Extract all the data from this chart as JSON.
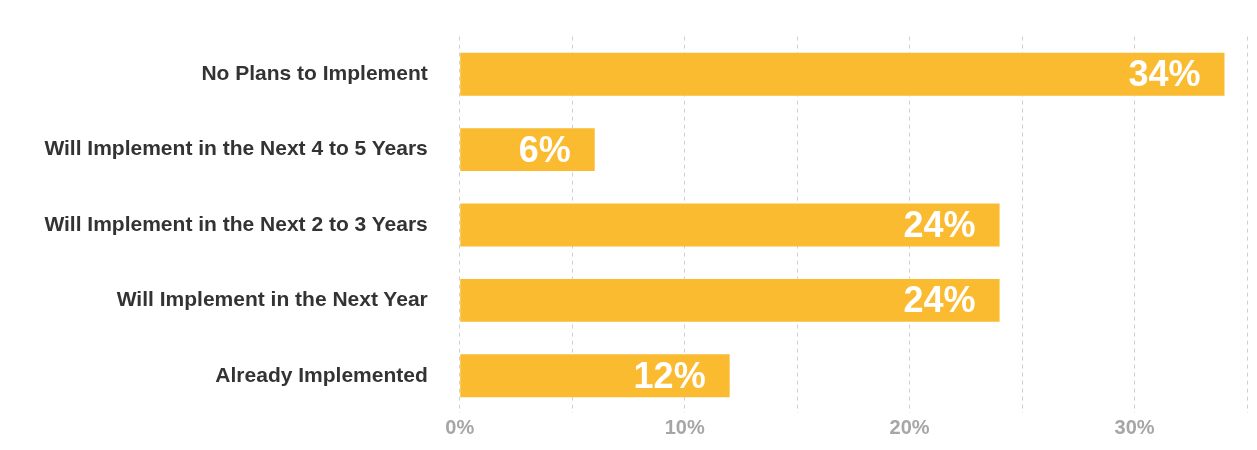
{
  "chart_data": {
    "type": "bar",
    "orientation": "horizontal",
    "categories": [
      "No Plans to Implement",
      "Will Implement in the Next 4 to 5 Years",
      "Will Implement in the Next 2 to 3 Years",
      "Will Implement in the Next Year",
      "Already Implemented"
    ],
    "values": [
      34,
      6,
      24,
      24,
      12
    ],
    "value_labels": [
      "34%",
      "6%",
      "24%",
      "24%",
      "12%"
    ],
    "color": "#fbbb30",
    "xlim": [
      0,
      35
    ],
    "xticks": [
      {
        "value": 0,
        "label": "0%"
      },
      {
        "value": 5,
        "label": null
      },
      {
        "value": 10,
        "label": "10%"
      },
      {
        "value": 15,
        "label": null
      },
      {
        "value": 20,
        "label": "20%"
      },
      {
        "value": 25,
        "label": null
      },
      {
        "value": 30,
        "label": "30%"
      },
      {
        "value": 35,
        "label": null
      }
    ],
    "grid": "x",
    "legend": false
  }
}
